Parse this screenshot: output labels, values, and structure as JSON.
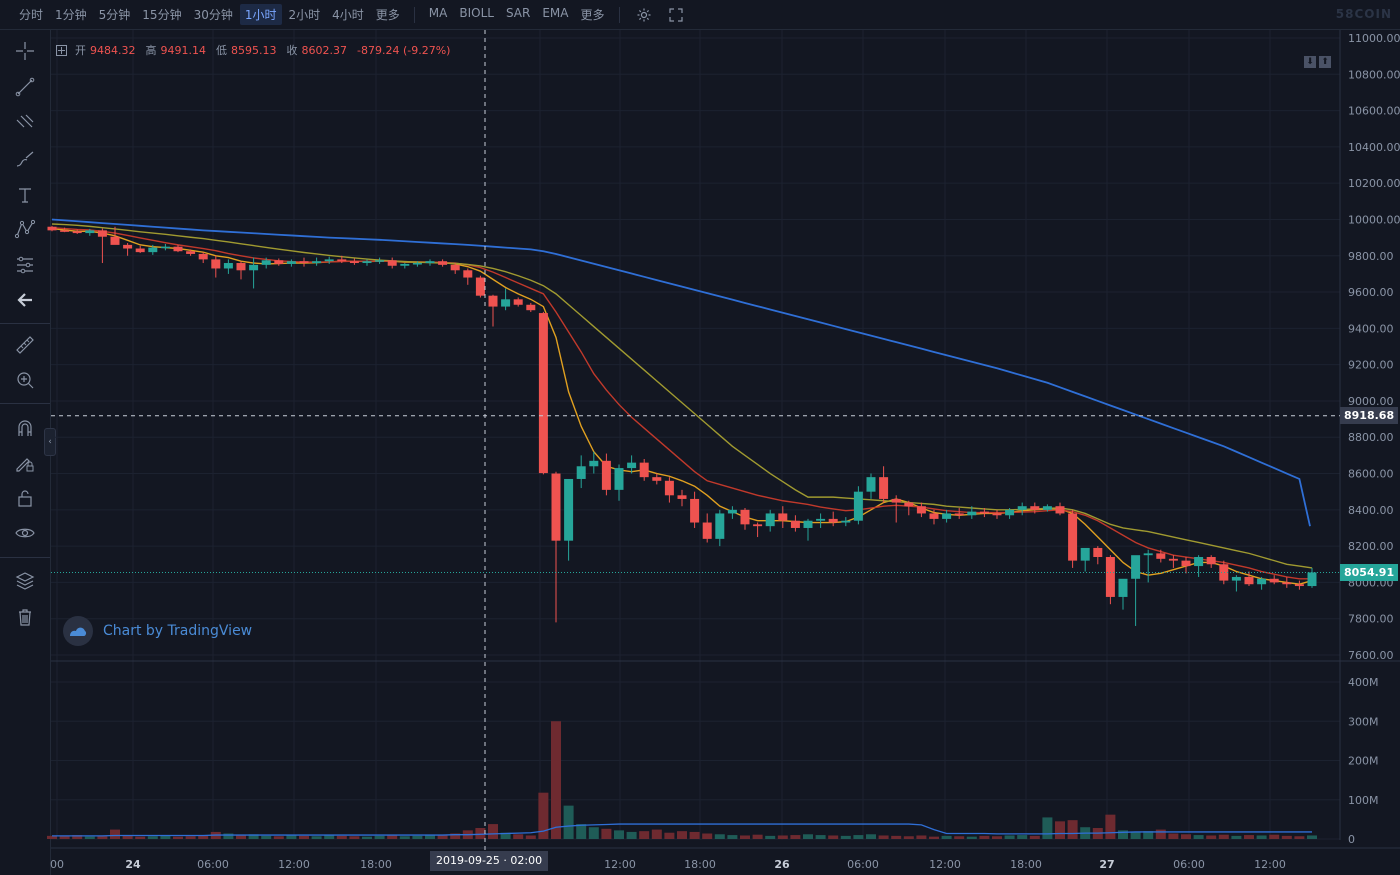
{
  "topbar": {
    "intervals": [
      "分时",
      "1分钟",
      "5分钟",
      "15分钟",
      "30分钟",
      "1小时",
      "2小时",
      "4小时",
      "更多"
    ],
    "active_interval": "1小时",
    "indicators": [
      "MA",
      "BIOLL",
      "SAR",
      "EMA",
      "更多"
    ],
    "icons": [
      "gear-icon",
      "fullscreen-icon"
    ],
    "brand": "58COIN"
  },
  "toolbar": {
    "tools": [
      "crosshair-icon",
      "trend-line-icon",
      "fib-tool-icon",
      "brush-icon",
      "text-icon",
      "pattern-icon",
      "prediction-icon",
      "back-arrow-icon",
      "ruler-icon",
      "zoom-in-icon",
      "magnet-icon",
      "lock-drawing-icon",
      "lock-icon",
      "eye-icon",
      "layers-icon",
      "trash-icon"
    ],
    "collapse_label": "‹"
  },
  "ohlc": {
    "open_label": "开",
    "open": "9484.32",
    "high_label": "高",
    "high": "9491.14",
    "low_label": "低",
    "low": "8595.13",
    "close_label": "收",
    "close": "8602.37",
    "change": "-879.24 (-9.27%)"
  },
  "legend_buttons": [
    "⬇",
    "⬆"
  ],
  "watermark": "Chart by TradingView",
  "crosshair": {
    "price": "8918.68",
    "time": "2019-09-25 · 02:00"
  },
  "last_price": "8054.91",
  "colors": {
    "background": "#131722",
    "up": "#26a69a",
    "down": "#ef5350",
    "ma_short": "#e0a020",
    "ma_mid": "#c0392b",
    "ma_long": "#a09a30",
    "ma_xlong": "#2f6fd6",
    "volume_ma": "#2f6fd6",
    "crosshair": "#ffffff",
    "last_price": "#26a69a"
  },
  "chart_data": {
    "type": "candlestick",
    "interval": "1小时",
    "price_axis": {
      "labels": [
        "11000.00",
        "10800.00",
        "10600.00",
        "10400.00",
        "10200.00",
        "10000.00",
        "9800.00",
        "9600.00",
        "9400.00",
        "9200.00",
        "9000.00",
        "8800.00",
        "8600.00",
        "8400.00",
        "8200.00",
        "8000.00",
        "7800.00",
        "7600.00"
      ],
      "range": [
        7600,
        11000
      ]
    },
    "volume_axis": {
      "labels": [
        "400M",
        "300M",
        "200M",
        "100M",
        "0"
      ],
      "range": [
        0,
        400
      ]
    },
    "time_axis": {
      "labels": [
        "00",
        "24",
        "06:00",
        "12:00",
        "18:00",
        "00",
        "12:00",
        "18:00",
        "26",
        "06:00",
        "12:00",
        "18:00",
        "27",
        "06:00",
        "12:00"
      ],
      "hidden_under_crosshair": [
        "00"
      ]
    },
    "candles_hourly": [
      [
        9960,
        9965,
        9935,
        9940
      ],
      [
        9940,
        9955,
        9930,
        9935
      ],
      [
        9935,
        9945,
        9920,
        9925
      ],
      [
        9925,
        9948,
        9910,
        9940
      ],
      [
        9940,
        9950,
        9760,
        9905
      ],
      [
        9905,
        9960,
        9890,
        9860
      ],
      [
        9860,
        9870,
        9800,
        9840
      ],
      [
        9840,
        9855,
        9815,
        9820
      ],
      [
        9820,
        9860,
        9805,
        9845
      ],
      [
        9845,
        9865,
        9830,
        9850
      ],
      [
        9850,
        9860,
        9820,
        9825
      ],
      [
        9825,
        9835,
        9800,
        9810
      ],
      [
        9810,
        9820,
        9760,
        9780
      ],
      [
        9780,
        9800,
        9680,
        9730
      ],
      [
        9730,
        9780,
        9700,
        9760
      ],
      [
        9760,
        9770,
        9670,
        9720
      ],
      [
        9720,
        9790,
        9620,
        9750
      ],
      [
        9750,
        9790,
        9730,
        9775
      ],
      [
        9775,
        9785,
        9745,
        9755
      ],
      [
        9755,
        9780,
        9740,
        9770
      ],
      [
        9770,
        9790,
        9740,
        9760
      ],
      [
        9760,
        9790,
        9745,
        9770
      ],
      [
        9770,
        9795,
        9755,
        9780
      ],
      [
        9780,
        9800,
        9760,
        9770
      ],
      [
        9770,
        9785,
        9750,
        9760
      ],
      [
        9760,
        9780,
        9745,
        9770
      ],
      [
        9770,
        9790,
        9755,
        9775
      ],
      [
        9775,
        9790,
        9730,
        9745
      ],
      [
        9745,
        9760,
        9730,
        9755
      ],
      [
        9755,
        9770,
        9740,
        9760
      ],
      [
        9760,
        9780,
        9745,
        9770
      ],
      [
        9770,
        9780,
        9740,
        9750
      ],
      [
        9750,
        9760,
        9700,
        9720
      ],
      [
        9720,
        9730,
        9640,
        9680
      ],
      [
        9680,
        9690,
        9570,
        9580
      ],
      [
        9580,
        9585,
        9410,
        9520
      ],
      [
        9520,
        9620,
        9500,
        9560
      ],
      [
        9560,
        9570,
        9520,
        9530
      ],
      [
        9530,
        9540,
        9490,
        9500
      ],
      [
        9484.32,
        9491.14,
        8595.13,
        8602.37
      ],
      [
        8600,
        8610,
        7780,
        8230
      ],
      [
        8230,
        8410,
        8120,
        8570
      ],
      [
        8570,
        8700,
        8520,
        8640
      ],
      [
        8640,
        8720,
        8600,
        8670
      ],
      [
        8670,
        8710,
        8480,
        8510
      ],
      [
        8510,
        8650,
        8450,
        8630
      ],
      [
        8630,
        8700,
        8600,
        8660
      ],
      [
        8660,
        8680,
        8560,
        8580
      ],
      [
        8580,
        8600,
        8540,
        8560
      ],
      [
        8560,
        8580,
        8440,
        8480
      ],
      [
        8480,
        8510,
        8420,
        8460
      ],
      [
        8460,
        8500,
        8300,
        8330
      ],
      [
        8330,
        8380,
        8220,
        8240
      ],
      [
        8240,
        8400,
        8200,
        8380
      ],
      [
        8380,
        8420,
        8350,
        8400
      ],
      [
        8400,
        8410,
        8290,
        8320
      ],
      [
        8320,
        8330,
        8250,
        8310
      ],
      [
        8310,
        8400,
        8280,
        8380
      ],
      [
        8380,
        8420,
        8300,
        8340
      ],
      [
        8340,
        8370,
        8280,
        8300
      ],
      [
        8300,
        8350,
        8230,
        8340
      ],
      [
        8340,
        8380,
        8300,
        8350
      ],
      [
        8350,
        8390,
        8310,
        8330
      ],
      [
        8330,
        8360,
        8310,
        8340
      ],
      [
        8340,
        8530,
        8320,
        8500
      ],
      [
        8500,
        8600,
        8460,
        8580
      ],
      [
        8580,
        8640,
        8440,
        8460
      ],
      [
        8460,
        8480,
        8330,
        8440
      ],
      [
        8440,
        8450,
        8370,
        8420
      ],
      [
        8420,
        8440,
        8360,
        8380
      ],
      [
        8380,
        8400,
        8320,
        8350
      ],
      [
        8350,
        8400,
        8330,
        8380
      ],
      [
        8380,
        8410,
        8350,
        8370
      ],
      [
        8370,
        8420,
        8350,
        8390
      ],
      [
        8390,
        8410,
        8360,
        8380
      ],
      [
        8380,
        8400,
        8350,
        8370
      ],
      [
        8370,
        8410,
        8350,
        8400
      ],
      [
        8400,
        8440,
        8370,
        8420
      ],
      [
        8420,
        8440,
        8380,
        8400
      ],
      [
        8400,
        8430,
        8390,
        8420
      ],
      [
        8420,
        8440,
        8370,
        8380
      ],
      [
        8380,
        8400,
        8080,
        8120
      ],
      [
        8120,
        8160,
        8060,
        8190
      ],
      [
        8190,
        8200,
        8100,
        8140
      ],
      [
        8140,
        8150,
        7880,
        7920
      ],
      [
        7920,
        8010,
        7850,
        8020
      ],
      [
        8020,
        8050,
        7760,
        8150
      ],
      [
        8150,
        8180,
        8000,
        8160
      ],
      [
        8160,
        8180,
        8110,
        8130
      ],
      [
        8130,
        8150,
        8080,
        8120
      ],
      [
        8120,
        8140,
        8050,
        8090
      ],
      [
        8090,
        8150,
        8030,
        8140
      ],
      [
        8140,
        8150,
        8080,
        8100
      ],
      [
        8100,
        8120,
        7990,
        8010
      ],
      [
        8010,
        8040,
        7950,
        8030
      ],
      [
        8030,
        8060,
        7980,
        7990
      ],
      [
        7990,
        8030,
        7960,
        8020
      ],
      [
        8020,
        8040,
        7990,
        8000
      ],
      [
        8000,
        8030,
        7970,
        7990
      ],
      [
        7990,
        8010,
        7960,
        7980
      ],
      [
        7980,
        8080,
        7970,
        8054.91
      ]
    ],
    "volume_millions": [
      8,
      7,
      10,
      6,
      7,
      24,
      8,
      6,
      7,
      9,
      6,
      7,
      8,
      18,
      14,
      10,
      12,
      8,
      7,
      9,
      8,
      7,
      9,
      8,
      7,
      6,
      8,
      9,
      7,
      8,
      10,
      9,
      14,
      22,
      28,
      38,
      16,
      12,
      9,
      118,
      300,
      85,
      38,
      30,
      26,
      22,
      18,
      20,
      24,
      16,
      20,
      18,
      14,
      12,
      10,
      9,
      11,
      8,
      9,
      10,
      12,
      10,
      9,
      8,
      10,
      12,
      9,
      8,
      7,
      9,
      6,
      8,
      7,
      6,
      8,
      7,
      9,
      10,
      8,
      55,
      45,
      48,
      30,
      28,
      62,
      22,
      18,
      20,
      24,
      14,
      12,
      10,
      9,
      11,
      8,
      10,
      9,
      11,
      8,
      7,
      9
    ],
    "ma_lines": [
      {
        "color": "#e0a020",
        "values": [
          9950,
          9942,
          9935,
          9935,
          9925,
          9910,
          9885,
          9860,
          9850,
          9845,
          9840,
          9830,
          9820,
          9800,
          9790,
          9770,
          9760,
          9755,
          9757,
          9760,
          9760,
          9762,
          9766,
          9770,
          9770,
          9768,
          9770,
          9770,
          9765,
          9765,
          9765,
          9762,
          9755,
          9740,
          9715,
          9670,
          9625,
          9590,
          9560,
          9520,
          9350,
          9050,
          8860,
          8720,
          8640,
          8620,
          8610,
          8620,
          8600,
          8585,
          8560,
          8530,
          8480,
          8420,
          8390,
          8360,
          8340,
          8340,
          8340,
          8335,
          8330,
          8330,
          8330,
          8335,
          8360,
          8400,
          8440,
          8460,
          8440,
          8410,
          8385,
          8375,
          8370,
          8375,
          8380,
          8380,
          8385,
          8395,
          8400,
          8405,
          8405,
          8380,
          8320,
          8250,
          8180,
          8110,
          8060,
          8040,
          8050,
          8070,
          8090,
          8110,
          8110,
          8090,
          8060,
          8040,
          8020,
          8010,
          8000,
          7990,
          8010
        ]
      },
      {
        "color": "#c0392b",
        "values": [
          9955,
          9950,
          9945,
          9942,
          9935,
          9925,
          9912,
          9898,
          9885,
          9872,
          9860,
          9850,
          9840,
          9828,
          9812,
          9800,
          9788,
          9780,
          9772,
          9768,
          9765,
          9765,
          9766,
          9768,
          9770,
          9770,
          9770,
          9770,
          9768,
          9766,
          9765,
          9763,
          9760,
          9750,
          9735,
          9710,
          9680,
          9650,
          9620,
          9590,
          9490,
          9380,
          9270,
          9150,
          9060,
          8980,
          8910,
          8850,
          8790,
          8730,
          8670,
          8610,
          8560,
          8540,
          8520,
          8500,
          8480,
          8465,
          8450,
          8440,
          8430,
          8415,
          8405,
          8395,
          8400,
          8410,
          8420,
          8425,
          8420,
          8415,
          8405,
          8395,
          8390,
          8385,
          8385,
          8385,
          8385,
          8388,
          8390,
          8395,
          8400,
          8390,
          8370,
          8340,
          8300,
          8260,
          8220,
          8190,
          8170,
          8150,
          8140,
          8130,
          8120,
          8110,
          8095,
          8080,
          8060,
          8045,
          8030,
          8020,
          8020
        ]
      },
      {
        "color": "#a09a30",
        "values": [
          9975,
          9972,
          9968,
          9962,
          9955,
          9948,
          9940,
          9932,
          9925,
          9918,
          9910,
          9902,
          9895,
          9885,
          9876,
          9866,
          9856,
          9846,
          9836,
          9827,
          9818,
          9810,
          9802,
          9795,
          9788,
          9782,
          9776,
          9772,
          9768,
          9765,
          9762,
          9760,
          9758,
          9752,
          9744,
          9730,
          9712,
          9690,
          9665,
          9635,
          9590,
          9530,
          9470,
          9410,
          9350,
          9290,
          9230,
          9170,
          9110,
          9050,
          8990,
          8930,
          8870,
          8810,
          8750,
          8700,
          8650,
          8600,
          8555,
          8510,
          8470,
          8470,
          8470,
          8465,
          8460,
          8455,
          8450,
          8445,
          8440,
          8435,
          8430,
          8420,
          8415,
          8410,
          8405,
          8400,
          8400,
          8402,
          8405,
          8408,
          8410,
          8400,
          8380,
          8350,
          8320,
          8300,
          8290,
          8280,
          8265,
          8250,
          8235,
          8220,
          8205,
          8190,
          8175,
          8160,
          8140,
          8120,
          8100,
          8090,
          8080
        ]
      },
      {
        "color": "#2f6fd6",
        "values": [
          10000,
          9995,
          9990,
          9985,
          9980,
          9975,
          9970,
          9965,
          9960,
          9955,
          9950,
          9945,
          9940,
          9936,
          9932,
          9928,
          9924,
          9920,
          9916,
          9912,
          9908,
          9904,
          9900,
          9897,
          9894,
          9891,
          9888,
          9884,
          9880,
          9876,
          9872,
          9868,
          9864,
          9860,
          9855,
          9850,
          9845,
          9840,
          9835,
          9825,
          9810,
          9792,
          9774,
          9756,
          9738,
          9720,
          9702,
          9684,
          9666,
          9648,
          9630,
          9612,
          9594,
          9576,
          9558,
          9540,
          9522,
          9504,
          9486,
          9468,
          9450,
          9432,
          9414,
          9396,
          9378,
          9360,
          9342,
          9324,
          9306,
          9288,
          9270,
          9252,
          9234,
          9216,
          9198,
          9180,
          9160,
          9140,
          9120,
          9100,
          9075,
          9050,
          9025,
          9000,
          8975,
          8950,
          8925,
          8900,
          8875,
          8850,
          8825,
          8800,
          8775,
          8750,
          8720,
          8690,
          8660,
          8630,
          8600,
          8570,
          8310
        ]
      }
    ],
    "volume_ma": [
      8,
      8,
      8,
      8,
      8,
      9,
      9,
      9,
      9,
      9,
      9,
      9,
      9,
      10,
      10,
      10,
      10,
      10,
      10,
      10,
      10,
      10,
      10,
      10,
      10,
      10,
      10,
      10,
      10,
      10,
      10,
      10,
      11,
      11,
      12,
      13,
      14,
      15,
      16,
      20,
      30,
      33,
      35,
      36,
      37,
      38,
      38,
      38,
      38,
      38,
      38,
      38,
      38,
      38,
      38,
      38,
      38,
      38,
      38,
      38,
      38,
      38,
      38,
      38,
      38,
      38,
      38,
      38,
      38,
      36,
      24,
      14,
      14,
      14,
      14,
      13,
      13,
      13,
      13,
      13,
      14,
      14,
      15,
      15,
      16,
      17,
      18,
      18,
      18,
      18,
      18,
      18,
      18,
      18,
      18,
      18,
      18,
      18,
      18,
      18,
      18
    ]
  }
}
